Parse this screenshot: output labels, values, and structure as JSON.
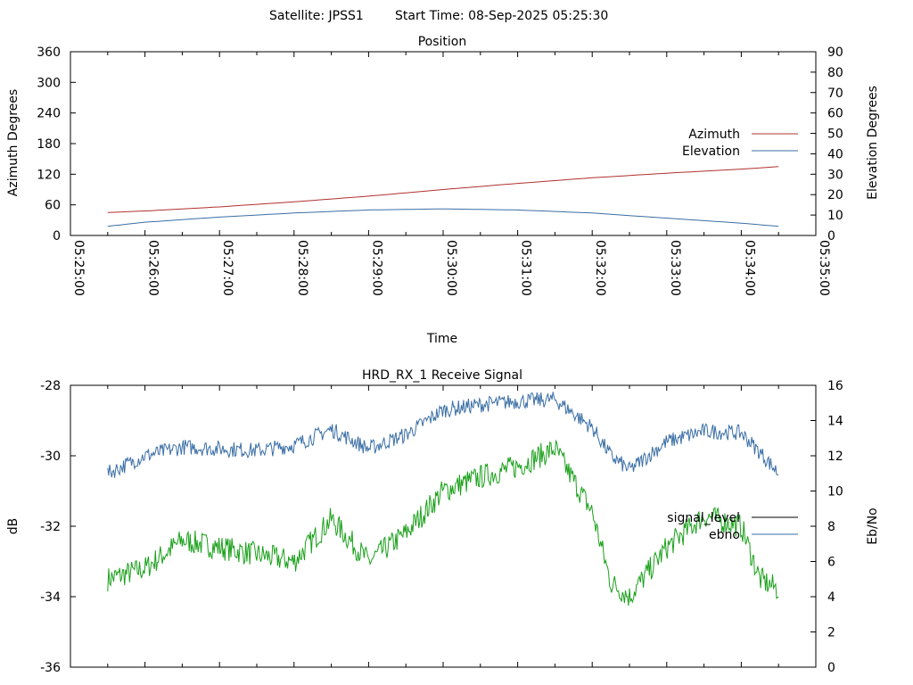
{
  "header": {
    "satellite_label": "Satellite: JPSS1",
    "start_label": "Start Time: 08-Sep-2025 05:25:30"
  },
  "chart_data": [
    {
      "type": "line",
      "title": "Position",
      "xlabel": "Time",
      "ylabel": "Azimuth Degrees",
      "y2label": "Elevation Degrees",
      "x_ticks": [
        "05:25:00",
        "05:26:00",
        "05:27:00",
        "05:28:00",
        "05:29:00",
        "05:30:00",
        "05:31:00",
        "05:32:00",
        "05:33:00",
        "05:34:00",
        "05:35:00"
      ],
      "xlim": [
        "05:25:00",
        "05:35:00"
      ],
      "ylim": [
        0,
        360
      ],
      "y_ticks": [
        0,
        60,
        120,
        180,
        240,
        300,
        360
      ],
      "y2lim": [
        0,
        90
      ],
      "y2_ticks": [
        0,
        10,
        20,
        30,
        40,
        50,
        60,
        70,
        80,
        90
      ],
      "grid": false,
      "legend_position": "right",
      "series": [
        {
          "name": "Azimuth",
          "axis": "left",
          "color": "#b03030",
          "x": [
            "05:25:30",
            "05:26:00",
            "05:27:00",
            "05:28:00",
            "05:29:00",
            "05:30:00",
            "05:31:00",
            "05:32:00",
            "05:33:00",
            "05:34:00",
            "05:34:30"
          ],
          "values": [
            45,
            48,
            56,
            66,
            77,
            90,
            102,
            113,
            122,
            130,
            135
          ]
        },
        {
          "name": "Elevation",
          "axis": "right",
          "color": "#3a6ea5",
          "x": [
            "05:25:30",
            "05:26:00",
            "05:27:00",
            "05:28:00",
            "05:29:00",
            "05:30:00",
            "05:31:00",
            "05:32:00",
            "05:33:00",
            "05:34:00",
            "05:34:30"
          ],
          "values": [
            4.5,
            6.5,
            9,
            11,
            12.5,
            13,
            12.5,
            11,
            8.5,
            6,
            4.5
          ]
        }
      ]
    },
    {
      "type": "line",
      "title": "HRD_RX_1 Receive Signal",
      "ylabel": "dB",
      "y2label": "Eb/No",
      "xlim": [
        "05:25:00",
        "05:35:00"
      ],
      "ylim": [
        -36,
        -28
      ],
      "y_ticks": [
        -36,
        -34,
        -32,
        -30,
        -28
      ],
      "y2lim": [
        0,
        16
      ],
      "y2_ticks": [
        0,
        2,
        4,
        6,
        8,
        10,
        12,
        14,
        16
      ],
      "grid": false,
      "legend_position": "right",
      "series": [
        {
          "name": "signal_level",
          "axis": "left",
          "color": "#1aa01a",
          "x": [
            "05:25:30",
            "05:26:00",
            "05:26:30",
            "05:27:00",
            "05:27:30",
            "05:28:00",
            "05:28:30",
            "05:29:00",
            "05:29:30",
            "05:30:00",
            "05:30:30",
            "05:31:00",
            "05:31:30",
            "05:32:00",
            "05:32:15",
            "05:32:30",
            "05:33:00",
            "05:33:30",
            "05:34:00",
            "05:34:15",
            "05:34:30"
          ],
          "values": [
            -33.5,
            -33.2,
            -32.4,
            -32.6,
            -32.8,
            -33.0,
            -31.8,
            -33.0,
            -32.2,
            -31.0,
            -30.6,
            -30.3,
            -29.8,
            -31.6,
            -33.6,
            -34.0,
            -32.6,
            -31.7,
            -32.0,
            -33.5,
            -33.8
          ]
        },
        {
          "name": "ebno",
          "axis": "right",
          "color": "#3a6ea5",
          "x": [
            "05:25:30",
            "05:26:00",
            "05:26:30",
            "05:27:00",
            "05:27:30",
            "05:28:00",
            "05:28:30",
            "05:29:00",
            "05:29:30",
            "05:30:00",
            "05:30:30",
            "05:31:00",
            "05:31:30",
            "05:32:00",
            "05:32:15",
            "05:32:30",
            "05:33:00",
            "05:33:30",
            "05:34:00",
            "05:34:15",
            "05:34:30"
          ],
          "values": [
            11.0,
            12.0,
            12.5,
            12.4,
            12.3,
            12.6,
            13.5,
            12.4,
            13.2,
            14.6,
            14.9,
            15.1,
            15.2,
            13.6,
            12.0,
            11.2,
            12.8,
            13.4,
            13.3,
            12.2,
            11.0
          ]
        }
      ]
    }
  ]
}
